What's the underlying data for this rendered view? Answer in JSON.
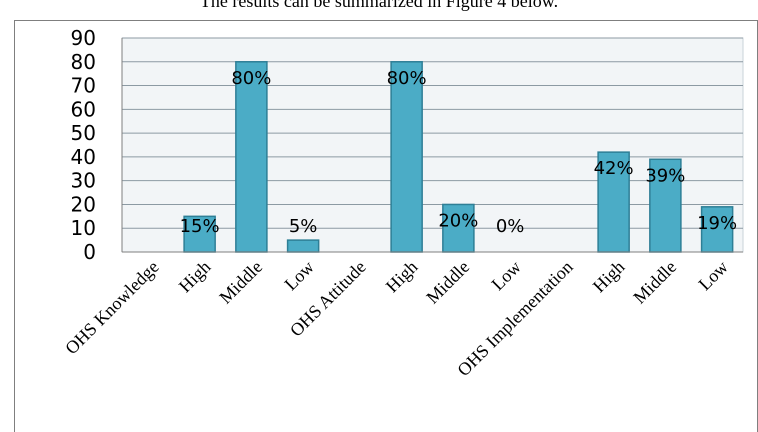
{
  "caption": "The results can be summarized in Figure 4 below.",
  "chart_data": {
    "type": "bar",
    "categories": [
      "OHS Knowledge",
      "High",
      "Middle",
      "Low",
      "OHS Attitude",
      "High",
      "Middle",
      "Low",
      "OHS Implementation",
      "High",
      "Middle",
      "Low"
    ],
    "values": [
      0,
      15,
      80,
      5,
      0,
      80,
      20,
      0,
      0,
      42,
      39,
      19
    ],
    "data_labels": [
      "",
      "15%",
      "80%",
      "5%",
      "",
      "80%",
      "20%",
      "0%",
      "",
      "42%",
      "39%",
      "19%"
    ],
    "yticks": [
      "0",
      "10",
      "20",
      "30",
      "40",
      "50",
      "60",
      "70",
      "80",
      "90"
    ],
    "ylim": [
      0,
      90
    ],
    "grid": true,
    "bar_color": "#4bacc6",
    "bar_edge_color": "#2e7f96",
    "plot_background": "#f2f5f7"
  }
}
